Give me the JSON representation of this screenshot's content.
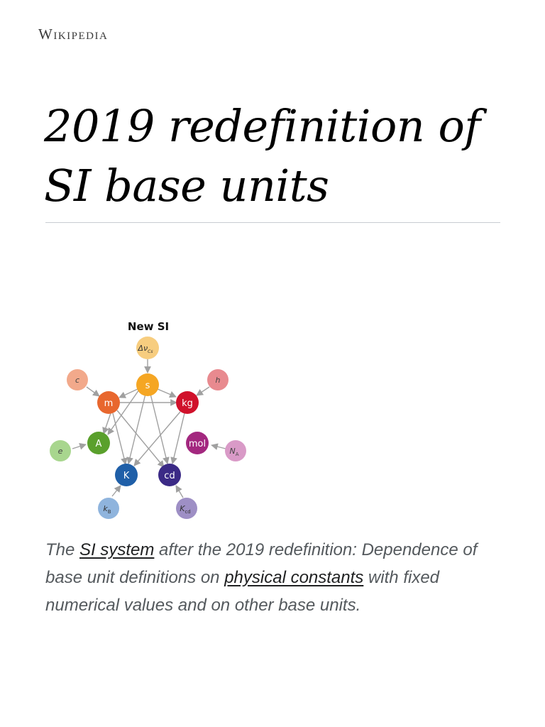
{
  "site": {
    "wordmark": "Wikipedia"
  },
  "article": {
    "title": "2019 redefinition of SI base units"
  },
  "figure": {
    "heading": "New SI",
    "colors": {
      "dvcs": "#f7cd7f",
      "s": "#f5a623",
      "m": "#e8672e",
      "kg": "#d0112b",
      "A": "#5aa02c",
      "mol": "#a3287f",
      "K": "#1f5fa8",
      "cd": "#3b2a86",
      "c": "#f2a98b",
      "h": "#e88a8f",
      "e": "#a8d68e",
      "NA": "#d99ac7",
      "kB": "#8fb4dd",
      "Kcd": "#9e8fc5",
      "arrow": "#a0a0a0"
    },
    "units": {
      "s": "s",
      "m": "m",
      "kg": "kg",
      "A": "A",
      "mol": "mol",
      "K": "K",
      "cd": "cd"
    },
    "constants": {
      "dvcs_main": "Δν",
      "dvcs_sub": "Cs",
      "c": "c",
      "h": "h",
      "e": "e",
      "NA_main": "N",
      "NA_sub": "A",
      "kB_main": "k",
      "kB_sub": "B",
      "Kcd_main": "K",
      "Kcd_sub": "cd"
    }
  },
  "caption": {
    "part1": "The ",
    "link1": "SI system",
    "part2": " after the 2019 redefinition: Dependence of base unit definitions on ",
    "link2": "physical constants",
    "part3": " with fixed numerical values and on other base units."
  }
}
